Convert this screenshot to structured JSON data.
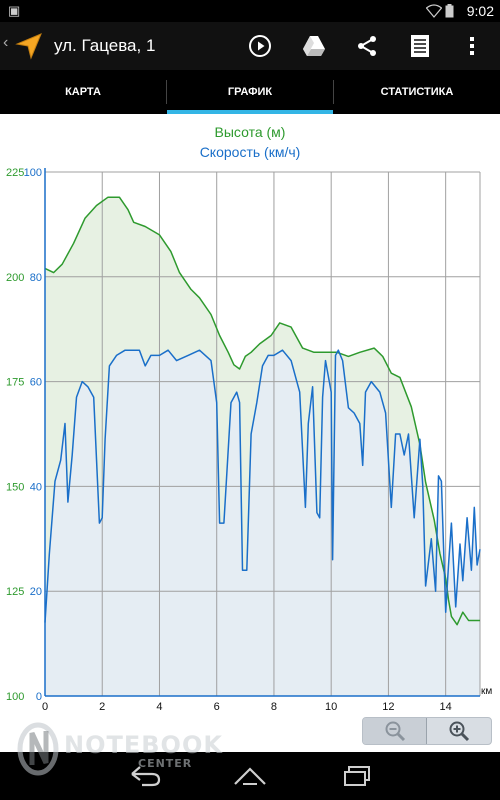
{
  "status_bar": {
    "time": "9:02",
    "left_icon": "image-icon",
    "right_icons": [
      "wifi-icon",
      "battery-icon"
    ]
  },
  "action_bar": {
    "title": "ул. Гацева, 1",
    "icons": [
      "navigation-arrow-icon",
      "play-icon",
      "google-drive-icon",
      "share-icon",
      "document-icon",
      "overflow-menu-icon"
    ]
  },
  "tabs": [
    {
      "label": "КАРТА",
      "selected": false
    },
    {
      "label": "ГРАФИК",
      "selected": true
    },
    {
      "label": "СТАТИСТИКА",
      "selected": false
    }
  ],
  "colors": {
    "elevation": "#2e9a2e",
    "speed": "#1a6fc9",
    "elevation_fill": "#e7f1e3",
    "speed_fill": "#e4ecf4",
    "accent": "#33b5e5"
  },
  "chart_data": {
    "type": "line",
    "title_elevation": "Высота (м)",
    "title_speed": "Скорость (км/ч)",
    "x_unit": "км",
    "x_ticks": [
      "0",
      "2",
      "4",
      "6",
      "8",
      "10",
      "12",
      "14"
    ],
    "xlim": [
      0,
      15.2
    ],
    "elevation_ticks": [
      "100",
      "125",
      "150",
      "175",
      "200",
      "225"
    ],
    "elevation_ylim": [
      100,
      225
    ],
    "speed_ticks": [
      "0",
      "20",
      "40",
      "60",
      "80",
      "100"
    ],
    "speed_ylim": [
      0,
      100
    ],
    "grid": true,
    "series": [
      {
        "name": "Высота (м)",
        "axis": "elevation",
        "x": [
          0,
          0.3,
          0.6,
          1.0,
          1.4,
          1.8,
          2.2,
          2.6,
          2.9,
          3.1,
          3.5,
          4.0,
          4.4,
          4.7,
          5.1,
          5.4,
          5.8,
          6.1,
          6.4,
          6.6,
          6.8,
          7.0,
          7.2,
          7.5,
          7.9,
          8.2,
          8.6,
          9.0,
          9.4,
          9.8,
          10.2,
          10.6,
          11.0,
          11.5,
          11.8,
          12.1,
          12.4,
          12.8,
          13.1,
          13.3,
          13.6,
          13.8,
          14.0,
          14.1,
          14.2,
          14.4,
          14.6,
          14.8,
          15.0,
          15.2
        ],
        "values": [
          202,
          201,
          203,
          208,
          214,
          217,
          219,
          219,
          216,
          213,
          212,
          210,
          206,
          201,
          197,
          195,
          191,
          186,
          182,
          179,
          178,
          181,
          182,
          184,
          186,
          189,
          188,
          183,
          182,
          182,
          182,
          181,
          182,
          183,
          181,
          177,
          176,
          169,
          160,
          151,
          142,
          134,
          128,
          123,
          119,
          117,
          120,
          118,
          118,
          118
        ]
      },
      {
        "name": "Скорость (км/ч)",
        "axis": "speed",
        "x": [
          0,
          0.15,
          0.35,
          0.55,
          0.7,
          0.8,
          0.95,
          1.1,
          1.3,
          1.5,
          1.7,
          1.9,
          2.0,
          2.1,
          2.25,
          2.5,
          2.8,
          3.1,
          3.3,
          3.5,
          3.7,
          4.0,
          4.3,
          4.6,
          5.0,
          5.4,
          5.8,
          6.0,
          6.1,
          6.25,
          6.5,
          6.7,
          6.8,
          6.9,
          7.05,
          7.2,
          7.4,
          7.6,
          7.8,
          8.0,
          8.3,
          8.6,
          8.9,
          9.1,
          9.2,
          9.35,
          9.5,
          9.6,
          9.7,
          9.8,
          10.0,
          10.05,
          10.15,
          10.25,
          10.4,
          10.6,
          10.8,
          11.0,
          11.1,
          11.2,
          11.4,
          11.7,
          11.9,
          12.1,
          12.25,
          12.4,
          12.55,
          12.7,
          12.9,
          13.1,
          13.2,
          13.3,
          13.5,
          13.65,
          13.75,
          13.85,
          14.0,
          14.1,
          14.2,
          14.35,
          14.5,
          14.6,
          14.75,
          14.9,
          15.0,
          15.1,
          15.2
        ],
        "values": [
          14,
          27,
          41,
          45,
          52,
          37,
          46,
          57,
          60,
          59,
          57,
          33,
          34,
          49,
          63,
          65,
          66,
          66,
          66,
          63,
          65,
          65,
          66,
          64,
          65,
          66,
          64,
          56,
          33,
          33,
          56,
          58,
          56,
          24,
          24,
          50,
          56,
          63,
          65,
          65,
          66,
          64,
          58,
          36,
          52,
          59,
          35,
          34,
          57,
          64,
          58,
          26,
          65,
          66,
          64,
          55,
          54,
          52,
          44,
          58,
          60,
          58,
          54,
          36,
          50,
          50,
          46,
          50,
          34,
          49,
          40,
          21,
          30,
          20,
          42,
          41,
          16,
          25,
          33,
          17,
          29,
          22,
          34,
          24,
          36,
          25,
          28
        ]
      }
    ]
  },
  "zoom": {
    "zoom_out_icon": "zoom-out-icon",
    "zoom_in_icon": "zoom-in-icon"
  },
  "watermark": {
    "line1": "NOTEBOOK",
    "line2": "CENTER"
  },
  "nav_bar": {
    "icons": [
      "back-icon",
      "home-icon",
      "recent-apps-icon"
    ]
  }
}
